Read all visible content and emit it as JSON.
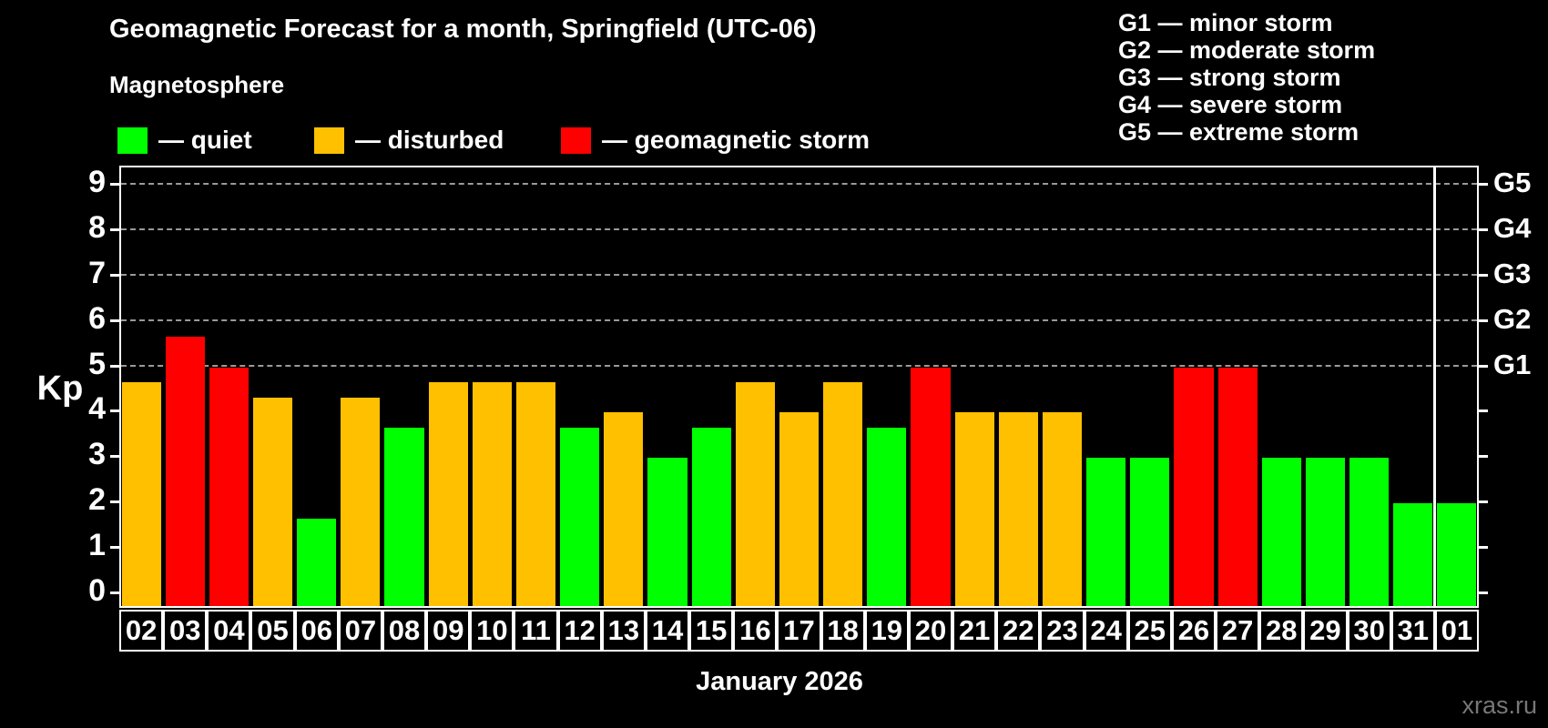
{
  "title": "Geomagnetic Forecast for a month, Springfield (UTC-06)",
  "subtitle": "Magnetosphere",
  "ylabel": "Kp",
  "watermark": "xras.ru",
  "colors": {
    "quiet": "#00ff00",
    "disturbed": "#ffc000",
    "storm": "#ff0000",
    "grid": "#9a9a9a",
    "axis": "#ffffff",
    "background": "#000000",
    "watermark": "#777777"
  },
  "legend": {
    "quiet": {
      "label": "— quiet",
      "color": "#00ff00"
    },
    "disturbed": {
      "label": "— disturbed",
      "color": "#ffc000"
    },
    "storm": {
      "label": "— geomagnetic storm",
      "color": "#ff0000"
    }
  },
  "g_legend": {
    "g1": "G1 — minor storm",
    "g2": "G2 — moderate storm",
    "g3": "G3 — strong storm",
    "g4": "G4 — severe storm",
    "g5": "G5 — extreme storm"
  },
  "chart_data": {
    "type": "bar",
    "title": "Geomagnetic Forecast for a month, Springfield (UTC-06)",
    "xlabel": "January 2026",
    "ylabel": "Kp",
    "ylim": [
      0,
      9
    ],
    "yticks": [
      0,
      1,
      2,
      3,
      4,
      5,
      6,
      7,
      8,
      9
    ],
    "grid_levels": [
      5,
      6,
      7,
      8,
      9
    ],
    "right_axis": [
      {
        "kp": 5,
        "label": "G1"
      },
      {
        "kp": 6,
        "label": "G2"
      },
      {
        "kp": 7,
        "label": "G3"
      },
      {
        "kp": 8,
        "label": "G4"
      },
      {
        "kp": 9,
        "label": "G5"
      }
    ],
    "legend_position": "top",
    "grid": "dashed, horizontal, G-levels only",
    "month_separator_before_index": 30,
    "categories": [
      "02",
      "03",
      "04",
      "05",
      "06",
      "07",
      "08",
      "09",
      "10",
      "11",
      "12",
      "13",
      "14",
      "15",
      "16",
      "17",
      "18",
      "19",
      "20",
      "21",
      "22",
      "23",
      "24",
      "25",
      "26",
      "27",
      "28",
      "29",
      "30",
      "31",
      "01"
    ],
    "values": [
      4.67,
      5.67,
      5.0,
      4.33,
      1.67,
      4.33,
      3.67,
      4.67,
      4.67,
      4.67,
      3.67,
      4.0,
      3.0,
      3.67,
      4.67,
      4.0,
      4.67,
      3.67,
      5.0,
      4.0,
      4.0,
      4.0,
      3.0,
      3.0,
      5.0,
      5.0,
      3.0,
      3.0,
      3.0,
      2.0,
      2.0
    ],
    "statuses": [
      "disturbed",
      "storm",
      "storm",
      "disturbed",
      "quiet",
      "disturbed",
      "quiet",
      "disturbed",
      "disturbed",
      "disturbed",
      "quiet",
      "disturbed",
      "quiet",
      "quiet",
      "disturbed",
      "disturbed",
      "disturbed",
      "quiet",
      "storm",
      "disturbed",
      "disturbed",
      "disturbed",
      "quiet",
      "quiet",
      "storm",
      "storm",
      "quiet",
      "quiet",
      "quiet",
      "quiet",
      "quiet"
    ]
  }
}
